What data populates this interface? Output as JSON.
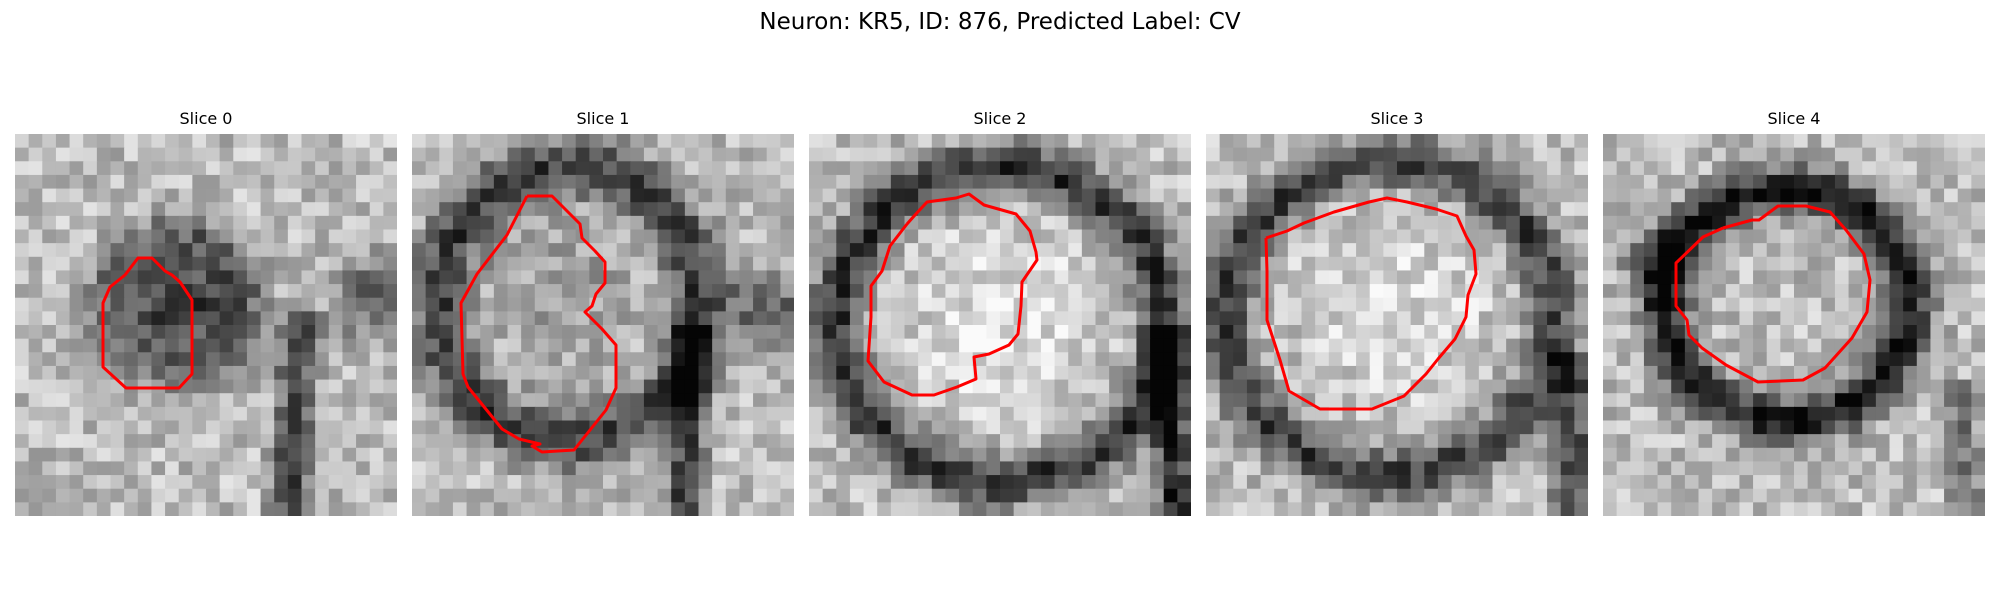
{
  "figure": {
    "title": "Neuron: KR5, ID: 876, Predicted Label: CV",
    "contour_color": "#ff0000",
    "colormap": "grayscale",
    "grid_size": 28
  },
  "panels": [
    {
      "title": "Slice 0"
    },
    {
      "title": "Slice 1"
    },
    {
      "title": "Slice 2"
    },
    {
      "title": "Slice 3"
    },
    {
      "title": "Slice 4"
    }
  ]
}
